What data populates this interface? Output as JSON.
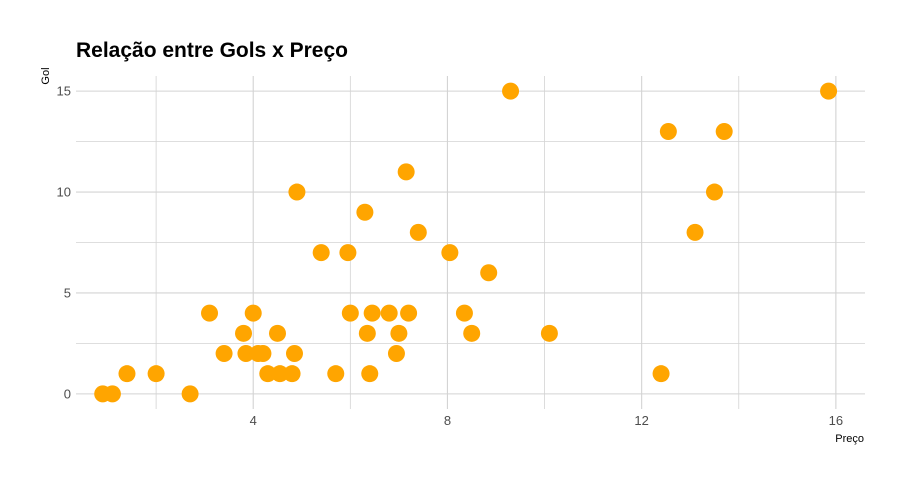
{
  "chart_data": {
    "type": "scatter",
    "title": "Relação entre Gols x Preço",
    "xlabel": "Preço",
    "ylabel": "Gol",
    "xlim": [
      0.35,
      16.6
    ],
    "ylim": [
      -0.75,
      15.75
    ],
    "x_ticks": [
      4,
      8,
      12,
      16
    ],
    "y_ticks": [
      0,
      5,
      10,
      15
    ],
    "x_minor_gridlines": [
      2,
      6,
      10,
      14
    ],
    "y_minor_gridlines": [
      2.5,
      7.5,
      12.5
    ],
    "grid": true,
    "point_color": "#FFA500",
    "grid_color": "#d3d3d3",
    "points": [
      {
        "x": 0.9,
        "y": 0
      },
      {
        "x": 1.1,
        "y": 0
      },
      {
        "x": 1.4,
        "y": 1
      },
      {
        "x": 2.0,
        "y": 1
      },
      {
        "x": 2.7,
        "y": 0
      },
      {
        "x": 3.1,
        "y": 4
      },
      {
        "x": 3.4,
        "y": 2
      },
      {
        "x": 3.8,
        "y": 3
      },
      {
        "x": 3.85,
        "y": 2
      },
      {
        "x": 4.0,
        "y": 4
      },
      {
        "x": 4.1,
        "y": 2
      },
      {
        "x": 4.2,
        "y": 2
      },
      {
        "x": 4.3,
        "y": 1
      },
      {
        "x": 4.5,
        "y": 3
      },
      {
        "x": 4.55,
        "y": 1
      },
      {
        "x": 4.8,
        "y": 1
      },
      {
        "x": 4.85,
        "y": 2
      },
      {
        "x": 4.9,
        "y": 10
      },
      {
        "x": 5.4,
        "y": 7
      },
      {
        "x": 5.7,
        "y": 1
      },
      {
        "x": 5.95,
        "y": 7
      },
      {
        "x": 6.0,
        "y": 4
      },
      {
        "x": 6.3,
        "y": 9
      },
      {
        "x": 6.35,
        "y": 3
      },
      {
        "x": 6.4,
        "y": 1
      },
      {
        "x": 6.45,
        "y": 4
      },
      {
        "x": 6.8,
        "y": 4
      },
      {
        "x": 6.95,
        "y": 2
      },
      {
        "x": 7.0,
        "y": 3
      },
      {
        "x": 7.15,
        "y": 11
      },
      {
        "x": 7.2,
        "y": 4
      },
      {
        "x": 7.4,
        "y": 8
      },
      {
        "x": 8.05,
        "y": 7
      },
      {
        "x": 8.35,
        "y": 4
      },
      {
        "x": 8.5,
        "y": 3
      },
      {
        "x": 8.85,
        "y": 6
      },
      {
        "x": 9.3,
        "y": 15
      },
      {
        "x": 10.1,
        "y": 3
      },
      {
        "x": 12.4,
        "y": 1
      },
      {
        "x": 12.55,
        "y": 13
      },
      {
        "x": 13.1,
        "y": 8
      },
      {
        "x": 13.5,
        "y": 10
      },
      {
        "x": 13.7,
        "y": 13
      },
      {
        "x": 15.85,
        "y": 15
      }
    ]
  }
}
